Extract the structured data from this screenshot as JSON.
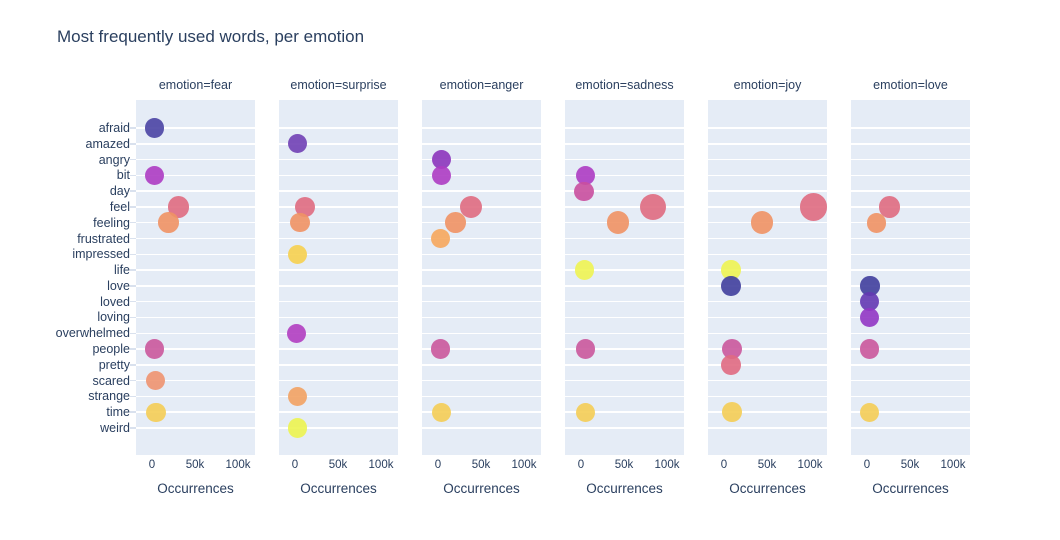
{
  "title": "Most frequently used words, per emotion",
  "colors": {
    "text": "#2a3f5f",
    "panel_bg": "#e5ecf6",
    "gridline": "#ffffff",
    "page_bg": "#ffffff"
  },
  "chart_data": {
    "type": "scatter",
    "title": "Most frequently used words, per emotion",
    "xlabel": "Occurrences",
    "ylabel": "",
    "x_tick_labels": [
      "0",
      "50k",
      "100k"
    ],
    "x_tick_values": [
      0,
      50000,
      100000
    ],
    "x_range": [
      -18500,
      119000
    ],
    "grid": "horizontal-white-gridlines",
    "legend_position": "none",
    "y_categories": [
      "afraid",
      "amazed",
      "angry",
      "bit",
      "day",
      "feel",
      "feeling",
      "frustrated",
      "impressed",
      "life",
      "love",
      "loved",
      "loving",
      "overwhelmed",
      "people",
      "pretty",
      "scared",
      "strange",
      "time",
      "weird"
    ],
    "word_colors": {
      "afraid": "#4a44a4",
      "amazed": "#7040b5",
      "angry": "#8c35bd",
      "bit": "#ad3cc3",
      "day": "#c94f9f",
      "feel": "#df6b81",
      "feeling": "#f09264",
      "frustrated": "#f6a75d",
      "impressed": "#f6d04f",
      "life": "#eef452",
      "love": "#403f9d",
      "loved": "#6339b3",
      "loving": "#9136c4",
      "overwhelmed": "#b13ec1",
      "people": "#ca589c",
      "pretty": "#e06a82",
      "scared": "#ee9370",
      "strange": "#f2a263",
      "time": "#f4cd55",
      "weird": "#ecf450"
    },
    "facets": [
      {
        "label": "emotion=fear",
        "emotion": "fear",
        "points": [
          {
            "word": "afraid",
            "value": 2500
          },
          {
            "word": "bit",
            "value": 2500
          },
          {
            "word": "feel",
            "value": 31000
          },
          {
            "word": "feeling",
            "value": 19000
          },
          {
            "word": "people",
            "value": 3000
          },
          {
            "word": "scared",
            "value": 4000
          },
          {
            "word": "time",
            "value": 4500
          }
        ]
      },
      {
        "label": "emotion=surprise",
        "emotion": "surprise",
        "points": [
          {
            "word": "amazed",
            "value": 2500
          },
          {
            "word": "feel",
            "value": 12000
          },
          {
            "word": "feeling",
            "value": 6000
          },
          {
            "word": "impressed",
            "value": 2500
          },
          {
            "word": "overwhelmed",
            "value": 2000
          },
          {
            "word": "strange",
            "value": 2500
          },
          {
            "word": "weird",
            "value": 2500
          }
        ]
      },
      {
        "label": "emotion=anger",
        "emotion": "anger",
        "points": [
          {
            "word": "angry",
            "value": 4000
          },
          {
            "word": "bit",
            "value": 4000
          },
          {
            "word": "feel",
            "value": 38000
          },
          {
            "word": "feeling",
            "value": 20000
          },
          {
            "word": "frustrated",
            "value": 2500
          },
          {
            "word": "people",
            "value": 3000
          },
          {
            "word": "time",
            "value": 4000
          }
        ]
      },
      {
        "label": "emotion=sadness",
        "emotion": "sadness",
        "points": [
          {
            "word": "bit",
            "value": 5000
          },
          {
            "word": "day",
            "value": 3500
          },
          {
            "word": "feel",
            "value": 84000
          },
          {
            "word": "feeling",
            "value": 43000
          },
          {
            "word": "life",
            "value": 4000
          },
          {
            "word": "people",
            "value": 5000
          },
          {
            "word": "time",
            "value": 5000
          }
        ]
      },
      {
        "label": "emotion=joy",
        "emotion": "joy",
        "points": [
          {
            "word": "feel",
            "value": 104000
          },
          {
            "word": "feeling",
            "value": 44000
          },
          {
            "word": "life",
            "value": 8000
          },
          {
            "word": "love",
            "value": 8500
          },
          {
            "word": "people",
            "value": 9500
          },
          {
            "word": "pretty",
            "value": 8500
          },
          {
            "word": "time",
            "value": 9500
          }
        ]
      },
      {
        "label": "emotion=love",
        "emotion": "love",
        "points": [
          {
            "word": "feel",
            "value": 26000
          },
          {
            "word": "feeling",
            "value": 11000
          },
          {
            "word": "love",
            "value": 3500
          },
          {
            "word": "loved",
            "value": 2500
          },
          {
            "word": "loving",
            "value": 2500
          },
          {
            "word": "people",
            "value": 2500
          },
          {
            "word": "time",
            "value": 2500
          }
        ]
      }
    ]
  }
}
